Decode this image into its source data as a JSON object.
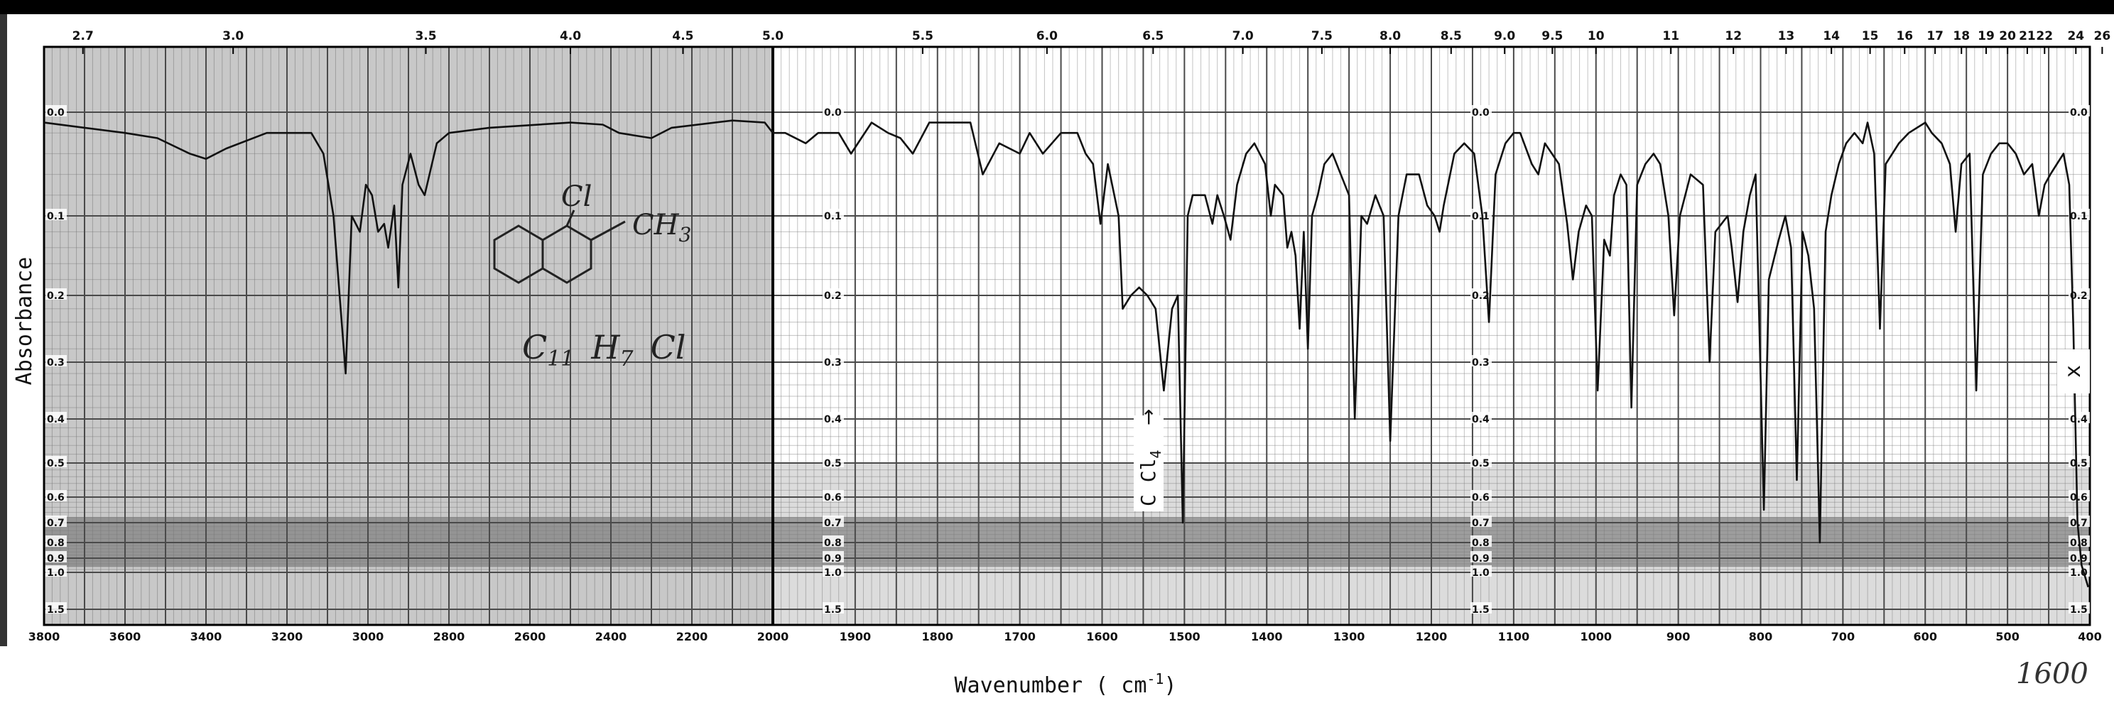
{
  "chart_data": {
    "type": "line",
    "title": "",
    "xlabel": "Wavenumber ( cm",
    "xlabel_sup": "-1",
    "xlabel_close": ")",
    "ylabel": "Absorbance",
    "x_reversed": true,
    "x_breaks": [
      2000
    ],
    "xlim": [
      3800,
      400
    ],
    "ylim": [
      0.0,
      1.5
    ],
    "x_scale_regions": [
      {
        "range": [
          3800,
          2000
        ],
        "note": "linear 200 cm-1 per major tick"
      },
      {
        "range": [
          2000,
          400
        ],
        "note": "linear 100 cm-1 per major tick"
      }
    ],
    "y_scale": "absorbance (nonlinear)",
    "grid": true,
    "bottom_ticks_left": [
      "3800",
      "3600",
      "3400",
      "3200",
      "3000",
      "2800",
      "2600",
      "2400",
      "2200",
      "2000"
    ],
    "bottom_ticks_right": [
      "1900",
      "1800",
      "1700",
      "1600",
      "1500",
      "1400",
      "1300",
      "1200",
      "1100",
      "1000",
      "900",
      "800",
      "700",
      "600",
      "500",
      "400"
    ],
    "top_ticks": [
      "2.7",
      "3.0",
      "3.5",
      "4.0",
      "4.5",
      "5.0",
      "5.5",
      "6.0",
      "6.5",
      "7.0",
      "7.5",
      "8.0",
      "8.5",
      "9.0",
      "9.5",
      "10",
      "11",
      "12",
      "13",
      "14",
      "15",
      "16",
      "17",
      "18",
      "19",
      "20",
      "21",
      "22",
      "24",
      "26"
    ],
    "top_ticks_wavenumber": [
      3704,
      3333,
      2857,
      2500,
      2222,
      2000,
      1818,
      1667,
      1538,
      1429,
      1333,
      1250,
      1176,
      1111,
      1053,
      1000,
      909,
      833,
      769,
      714,
      667,
      625,
      588,
      556,
      526,
      500,
      476,
      455,
      417,
      385
    ],
    "y_ticks": [
      "0.0",
      "0.1",
      "0.2",
      "0.3",
      "0.4",
      "0.5",
      "0.6",
      "0.7",
      "0.8",
      "0.9",
      "1.0",
      "1.5"
    ],
    "y_tick_values": [
      0.0,
      0.1,
      0.2,
      0.3,
      0.4,
      0.5,
      0.6,
      0.7,
      0.8,
      0.9,
      1.0,
      1.5
    ],
    "series": [
      {
        "name": "",
        "points": [
          [
            3800,
            0.01
          ],
          [
            3700,
            0.015
          ],
          [
            3600,
            0.02
          ],
          [
            3520,
            0.025
          ],
          [
            3440,
            0.04
          ],
          [
            3400,
            0.045
          ],
          [
            3350,
            0.035
          ],
          [
            3250,
            0.02
          ],
          [
            3140,
            0.02
          ],
          [
            3110,
            0.04
          ],
          [
            3085,
            0.1
          ],
          [
            3070,
            0.2
          ],
          [
            3055,
            0.32
          ],
          [
            3040,
            0.1
          ],
          [
            3020,
            0.12
          ],
          [
            3005,
            0.07
          ],
          [
            2990,
            0.08
          ],
          [
            2975,
            0.12
          ],
          [
            2960,
            0.11
          ],
          [
            2950,
            0.14
          ],
          [
            2935,
            0.09
          ],
          [
            2925,
            0.19
          ],
          [
            2915,
            0.07
          ],
          [
            2895,
            0.04
          ],
          [
            2875,
            0.07
          ],
          [
            2860,
            0.08
          ],
          [
            2830,
            0.03
          ],
          [
            2800,
            0.02
          ],
          [
            2700,
            0.015
          ],
          [
            2500,
            0.01
          ],
          [
            2420,
            0.012
          ],
          [
            2380,
            0.02
          ],
          [
            2300,
            0.025
          ],
          [
            2250,
            0.015
          ],
          [
            2100,
            0.008
          ],
          [
            2020,
            0.01
          ],
          [
            2000,
            0.02
          ],
          [
            1985,
            0.02
          ],
          [
            1960,
            0.03
          ],
          [
            1945,
            0.02
          ],
          [
            1920,
            0.02
          ],
          [
            1905,
            0.04
          ],
          [
            1880,
            0.01
          ],
          [
            1860,
            0.02
          ],
          [
            1845,
            0.025
          ],
          [
            1830,
            0.04
          ],
          [
            1810,
            0.01
          ],
          [
            1760,
            0.01
          ],
          [
            1745,
            0.06
          ],
          [
            1725,
            0.03
          ],
          [
            1700,
            0.04
          ],
          [
            1688,
            0.02
          ],
          [
            1672,
            0.04
          ],
          [
            1650,
            0.02
          ],
          [
            1630,
            0.02
          ],
          [
            1620,
            0.04
          ],
          [
            1611,
            0.05
          ],
          [
            1602,
            0.11
          ],
          [
            1593,
            0.05
          ],
          [
            1580,
            0.1
          ],
          [
            1575,
            0.22
          ],
          [
            1565,
            0.2
          ],
          [
            1555,
            0.19
          ],
          [
            1545,
            0.2
          ],
          [
            1535,
            0.22
          ],
          [
            1525,
            0.35
          ],
          [
            1515,
            0.22
          ],
          [
            1508,
            0.2
          ],
          [
            1502,
            0.7
          ],
          [
            1496,
            0.1
          ],
          [
            1490,
            0.08
          ],
          [
            1475,
            0.08
          ],
          [
            1466,
            0.11
          ],
          [
            1460,
            0.08
          ],
          [
            1452,
            0.1
          ],
          [
            1444,
            0.13
          ],
          [
            1436,
            0.07
          ],
          [
            1425,
            0.04
          ],
          [
            1415,
            0.03
          ],
          [
            1402,
            0.05
          ],
          [
            1395,
            0.1
          ],
          [
            1390,
            0.07
          ],
          [
            1380,
            0.08
          ],
          [
            1375,
            0.14
          ],
          [
            1370,
            0.12
          ],
          [
            1365,
            0.15
          ],
          [
            1360,
            0.25
          ],
          [
            1355,
            0.12
          ],
          [
            1350,
            0.28
          ],
          [
            1345,
            0.1
          ],
          [
            1338,
            0.08
          ],
          [
            1330,
            0.05
          ],
          [
            1320,
            0.04
          ],
          [
            1310,
            0.06
          ],
          [
            1300,
            0.08
          ],
          [
            1293,
            0.4
          ],
          [
            1285,
            0.1
          ],
          [
            1278,
            0.11
          ],
          [
            1268,
            0.08
          ],
          [
            1258,
            0.1
          ],
          [
            1250,
            0.45
          ],
          [
            1240,
            0.1
          ],
          [
            1230,
            0.06
          ],
          [
            1215,
            0.06
          ],
          [
            1205,
            0.09
          ],
          [
            1196,
            0.1
          ],
          [
            1190,
            0.12
          ],
          [
            1185,
            0.09
          ],
          [
            1172,
            0.04
          ],
          [
            1160,
            0.03
          ],
          [
            1148,
            0.04
          ],
          [
            1138,
            0.1
          ],
          [
            1130,
            0.24
          ],
          [
            1122,
            0.06
          ],
          [
            1110,
            0.03
          ],
          [
            1100,
            0.02
          ],
          [
            1092,
            0.02
          ],
          [
            1078,
            0.05
          ],
          [
            1070,
            0.06
          ],
          [
            1062,
            0.03
          ],
          [
            1045,
            0.05
          ],
          [
            1035,
            0.11
          ],
          [
            1028,
            0.18
          ],
          [
            1021,
            0.12
          ],
          [
            1012,
            0.09
          ],
          [
            1005,
            0.1
          ],
          [
            998,
            0.35
          ],
          [
            990,
            0.13
          ],
          [
            983,
            0.15
          ],
          [
            978,
            0.08
          ],
          [
            970,
            0.06
          ],
          [
            963,
            0.07
          ],
          [
            957,
            0.38
          ],
          [
            950,
            0.07
          ],
          [
            940,
            0.05
          ],
          [
            930,
            0.04
          ],
          [
            922,
            0.05
          ],
          [
            912,
            0.1
          ],
          [
            905,
            0.23
          ],
          [
            898,
            0.1
          ],
          [
            885,
            0.06
          ],
          [
            870,
            0.07
          ],
          [
            862,
            0.3
          ],
          [
            855,
            0.12
          ],
          [
            840,
            0.1
          ],
          [
            835,
            0.14
          ],
          [
            828,
            0.21
          ],
          [
            821,
            0.12
          ],
          [
            813,
            0.08
          ],
          [
            806,
            0.06
          ],
          [
            796,
            0.65
          ],
          [
            790,
            0.18
          ],
          [
            778,
            0.13
          ],
          [
            770,
            0.1
          ],
          [
            763,
            0.14
          ],
          [
            756,
            0.55
          ],
          [
            749,
            0.12
          ],
          [
            742,
            0.15
          ],
          [
            735,
            0.22
          ],
          [
            728,
            0.8
          ],
          [
            721,
            0.12
          ],
          [
            714,
            0.08
          ],
          [
            705,
            0.05
          ],
          [
            696,
            0.03
          ],
          [
            686,
            0.02
          ],
          [
            676,
            0.03
          ],
          [
            670,
            0.01
          ],
          [
            662,
            0.04
          ],
          [
            655,
            0.25
          ],
          [
            648,
            0.05
          ],
          [
            640,
            0.04
          ],
          [
            632,
            0.03
          ],
          [
            620,
            0.02
          ],
          [
            610,
            0.015
          ],
          [
            600,
            0.01
          ],
          [
            592,
            0.02
          ],
          [
            580,
            0.03
          ],
          [
            570,
            0.05
          ],
          [
            563,
            0.12
          ],
          [
            556,
            0.05
          ],
          [
            546,
            0.04
          ],
          [
            538,
            0.35
          ],
          [
            530,
            0.06
          ],
          [
            520,
            0.04
          ],
          [
            510,
            0.03
          ],
          [
            500,
            0.03
          ],
          [
            490,
            0.04
          ],
          [
            480,
            0.06
          ],
          [
            470,
            0.05
          ],
          [
            462,
            0.1
          ],
          [
            455,
            0.07
          ],
          [
            448,
            0.06
          ],
          [
            440,
            0.05
          ],
          [
            432,
            0.04
          ],
          [
            425,
            0.07
          ],
          [
            420,
            0.25
          ],
          [
            415,
            0.7
          ],
          [
            410,
            0.95
          ],
          [
            402,
            1.2
          ]
        ]
      }
    ],
    "annotations": {
      "structure_substituent_1": "Cl",
      "structure_substituent_2": "CH",
      "structure_substituent_2_sub": "3",
      "formula_c": "C",
      "formula_c_sub": "11",
      "formula_h": "H",
      "formula_h_sub": "7",
      "formula_cl": "Cl",
      "solvent_label": "C Cl",
      "solvent_sub": "4",
      "solvent_arrow": "→",
      "right_marker": "x",
      "handwritten_number": "1600"
    }
  },
  "colors": {
    "grid": "#4a4a4a",
    "grid_fine": "#7a7a7a",
    "trace": "#111111",
    "shade_left": "#9a9a9a",
    "shade_band": "#6a6a6a",
    "paper": "#ffffff",
    "top_bar": "#000000"
  }
}
